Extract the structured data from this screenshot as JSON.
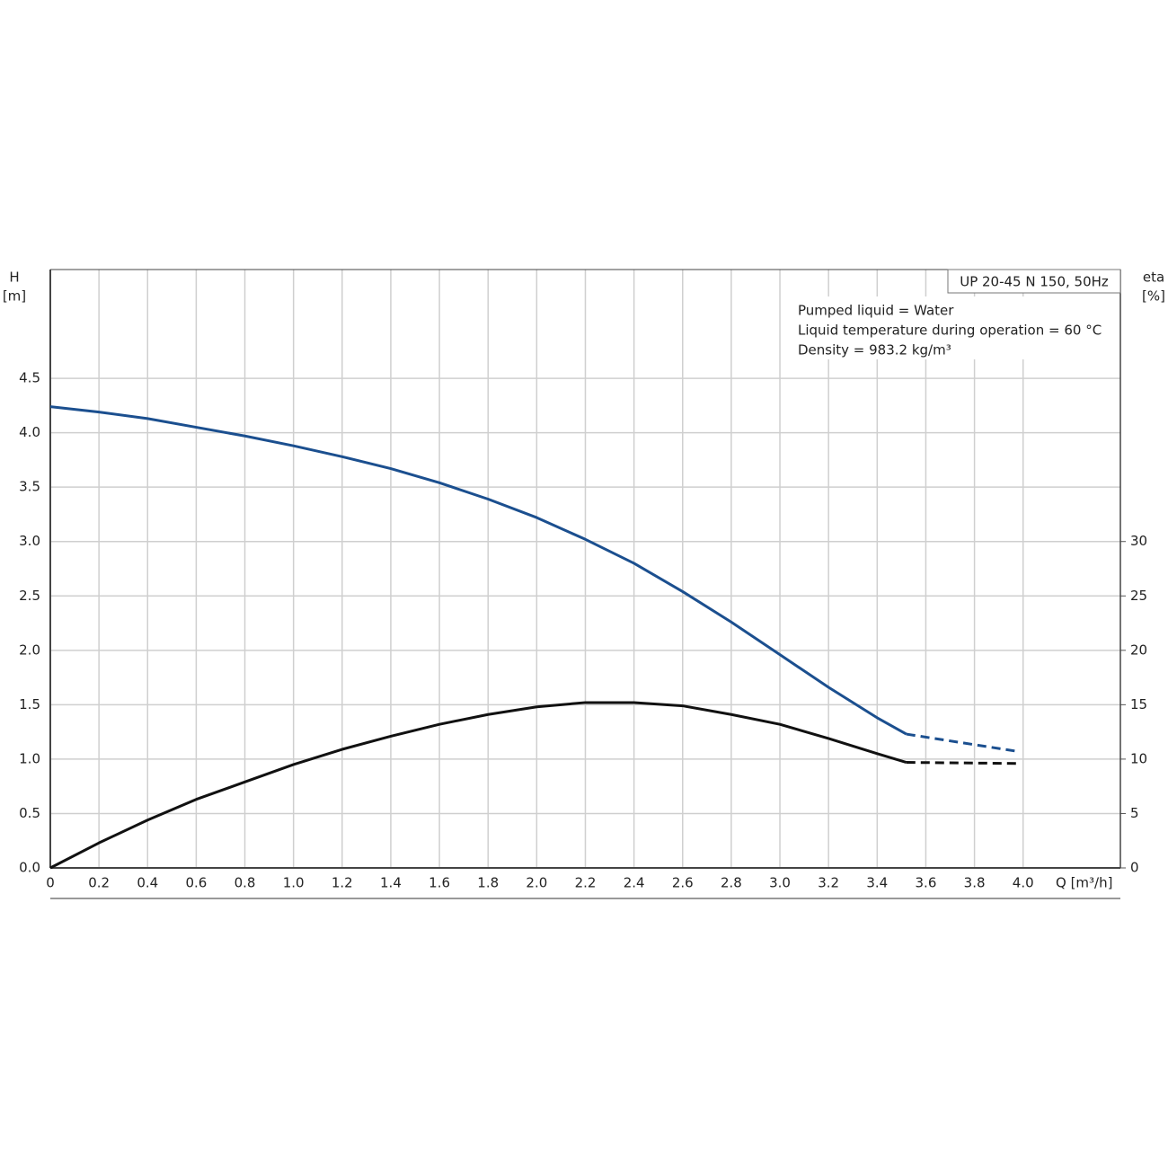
{
  "chart_data": {
    "type": "line",
    "title": "UP 20-45 N 150, 50Hz",
    "annotations": [
      "Pumped liquid = Water",
      "Liquid temperature during operation = 60 °C",
      "Density = 983.2 kg/m³"
    ],
    "x_label": "Q [m³/h]",
    "y_label": [
      "H",
      "[m]"
    ],
    "y2_label": [
      "eta",
      "[%]"
    ],
    "xlim": [
      0,
      4.4
    ],
    "xticks": [
      0,
      0.2,
      0.4,
      0.6,
      0.8,
      {
        "value": 1,
        "label": "1.0"
      },
      1.2,
      1.4,
      1.6,
      1.8,
      {
        "value": 2,
        "label": "2.0"
      },
      2.2,
      2.4,
      2.6,
      2.8,
      {
        "value": 3,
        "label": "3.0"
      },
      3.2,
      3.4,
      3.6,
      3.8,
      {
        "value": 4,
        "label": "4.0"
      }
    ],
    "ylim": [
      0,
      5.5
    ],
    "yticks": [
      {
        "value": 0,
        "label": "0.0"
      },
      0.5,
      {
        "value": 1,
        "label": "1.0"
      },
      1.5,
      {
        "value": 2,
        "label": "2.0"
      },
      2.5,
      {
        "value": 3,
        "label": "3.0"
      },
      3.5,
      {
        "value": 4,
        "label": "4.0"
      },
      4.5
    ],
    "y2lim": [
      0,
      55
    ],
    "y2ticks": [
      0,
      5,
      10,
      15,
      20,
      25,
      30
    ],
    "grid": true,
    "series": [
      {
        "color": "#1b4f8f",
        "dashed": false,
        "x": [
          0,
          0.2,
          0.4,
          0.6,
          0.8,
          1.0,
          1.2,
          1.4,
          1.6,
          1.8,
          2.0,
          2.2,
          2.4,
          2.6,
          2.8,
          3.0,
          3.2,
          3.4,
          3.52
        ],
        "values": [
          4.24,
          4.19,
          4.13,
          4.05,
          3.97,
          3.88,
          3.78,
          3.67,
          3.54,
          3.39,
          3.22,
          3.02,
          2.8,
          2.54,
          2.26,
          1.96,
          1.66,
          1.38,
          1.23
        ]
      },
      {
        "color": "#1b4f8f",
        "dashed": true,
        "x": [
          3.52,
          3.98
        ],
        "values": [
          1.23,
          1.07
        ]
      },
      {
        "color": "#111111",
        "dashed": false,
        "axis": "y2",
        "x": [
          0,
          0.2,
          0.4,
          0.6,
          0.8,
          1.0,
          1.2,
          1.4,
          1.6,
          1.8,
          2.0,
          2.2,
          2.4,
          2.6,
          2.8,
          3.0,
          3.2,
          3.4,
          3.52
        ],
        "values": [
          0,
          2.3,
          4.4,
          6.3,
          7.9,
          9.5,
          10.9,
          12.1,
          13.2,
          14.1,
          14.8,
          15.2,
          15.2,
          14.9,
          14.1,
          13.2,
          11.9,
          10.5,
          9.7
        ]
      },
      {
        "color": "#111111",
        "dashed": true,
        "axis": "y2",
        "x": [
          3.52,
          3.98
        ],
        "values": [
          9.7,
          9.6
        ]
      }
    ]
  }
}
